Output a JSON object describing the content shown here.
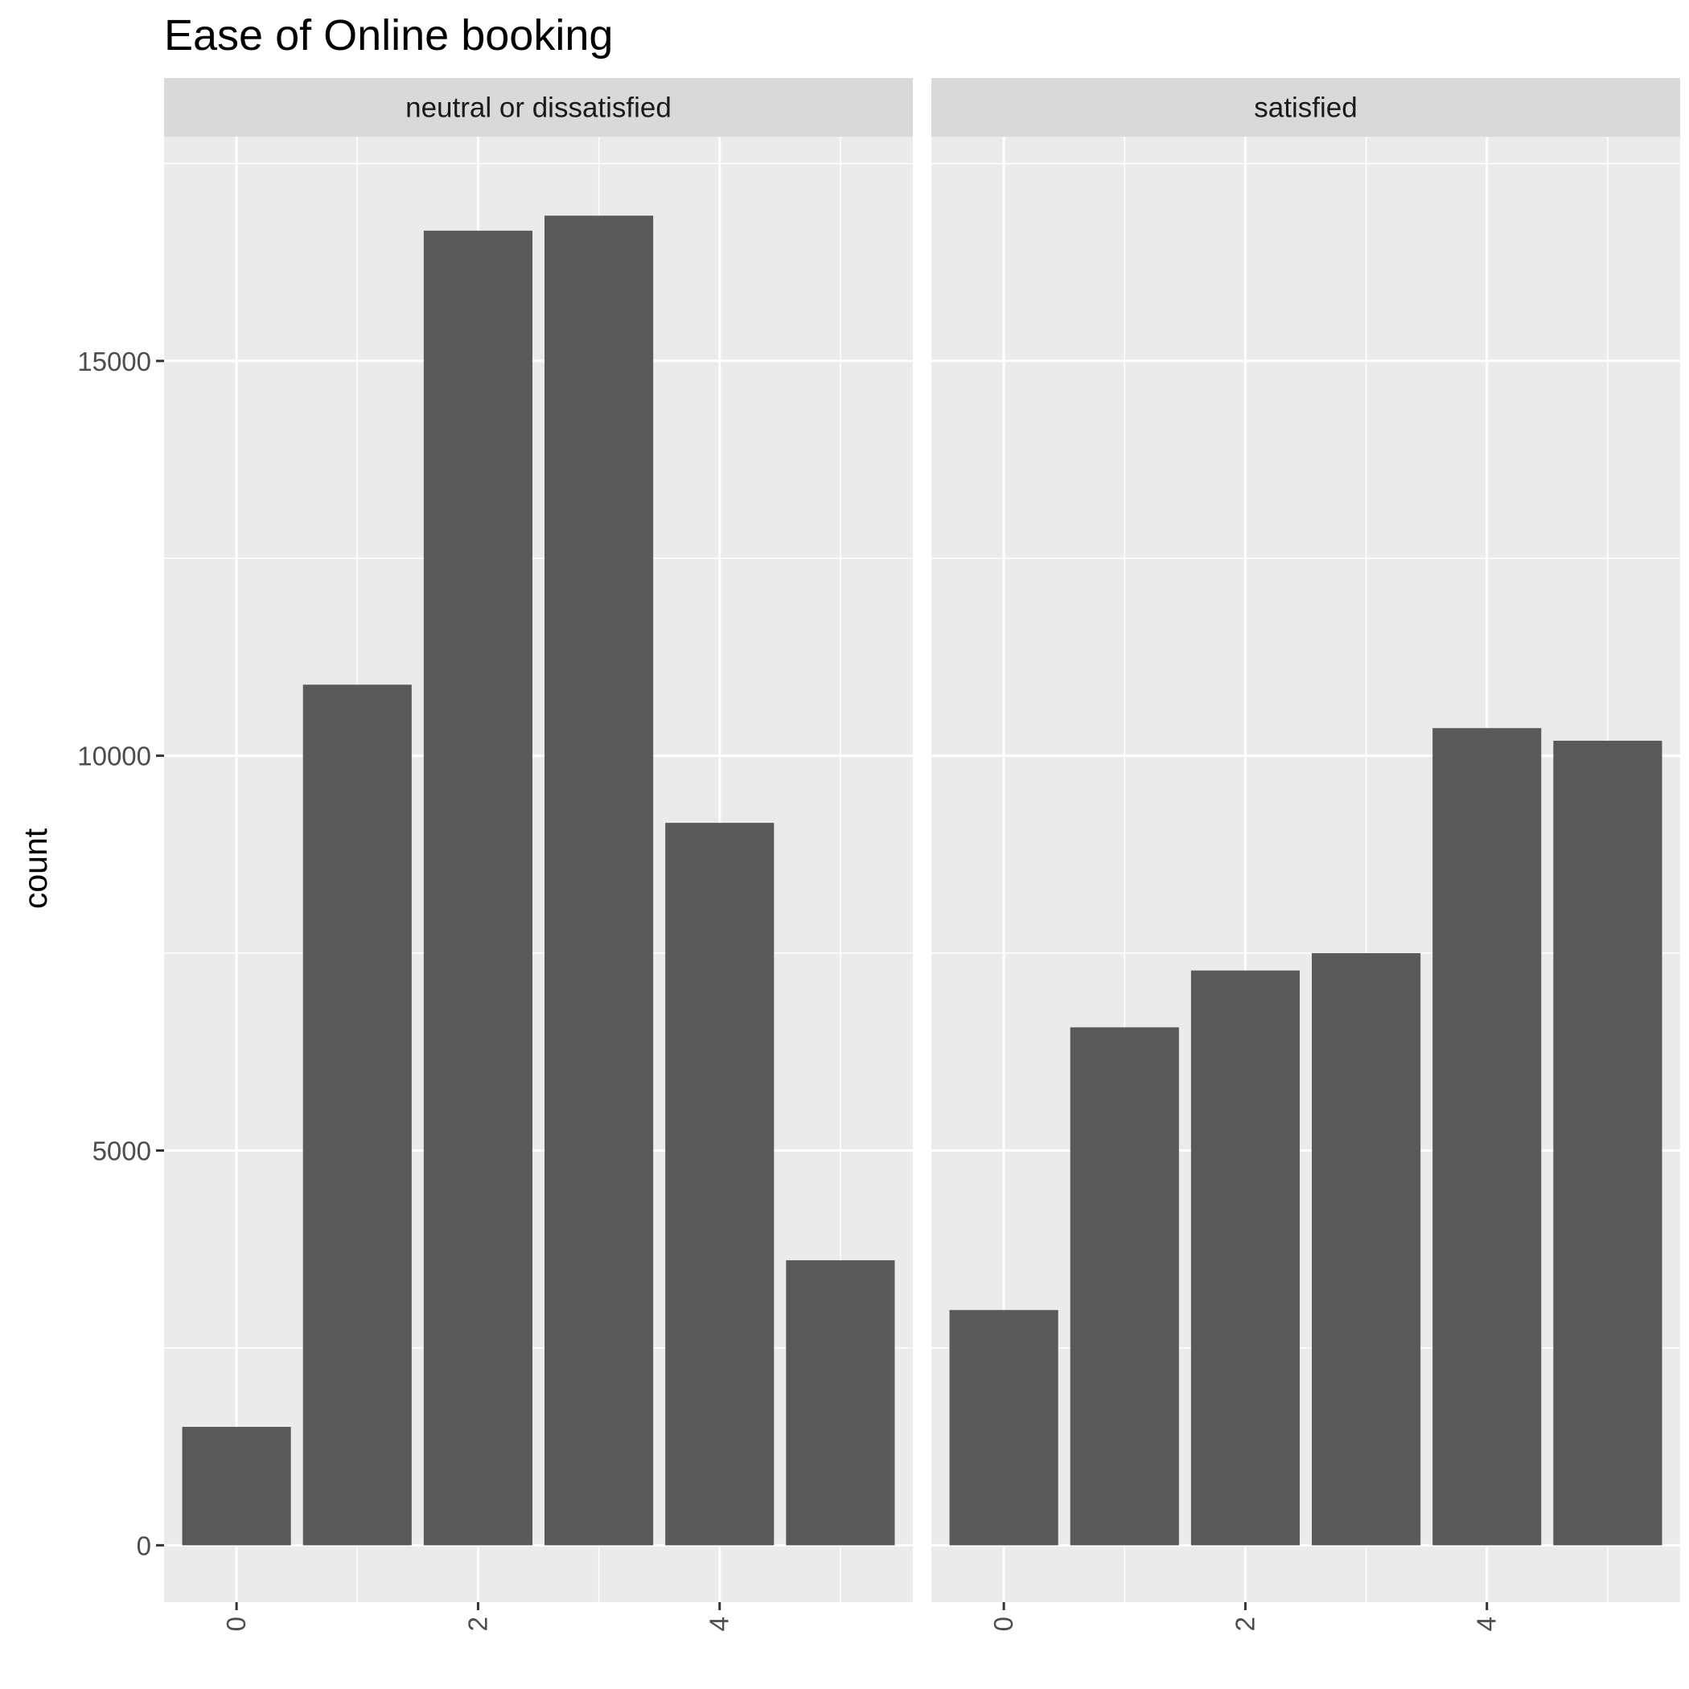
{
  "chart_data": {
    "type": "bar",
    "title": "Ease of Online booking",
    "xlabel": "",
    "ylabel": "count",
    "x": [
      0,
      1,
      2,
      3,
      4,
      5
    ],
    "x_tick_labels": [
      "0",
      "2",
      "4"
    ],
    "y_tick_labels": [
      "0",
      "5000",
      "10000",
      "15000"
    ],
    "xlim": [
      -0.6,
      5.6
    ],
    "ylim": [
      -720,
      17840
    ],
    "grid": true,
    "facets": [
      {
        "label": "neutral or dissatisfied",
        "values": [
          1500,
          10900,
          16650,
          16840,
          9150,
          3610
        ]
      },
      {
        "label": "satisfied",
        "values": [
          2980,
          6560,
          7280,
          7500,
          10350,
          10190
        ]
      }
    ],
    "colors": {
      "bar": "#595959",
      "panel": "#ebebeb",
      "strip": "#d9d9d9",
      "grid": "#ffffff"
    }
  }
}
